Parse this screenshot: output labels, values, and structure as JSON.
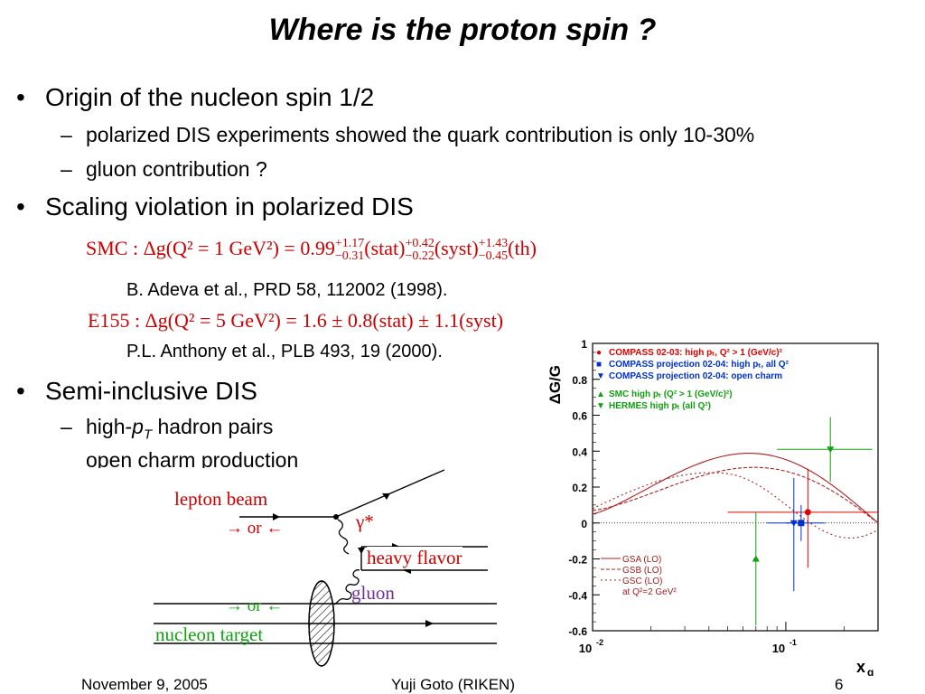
{
  "slide": {
    "title": "Where is the proton spin ?",
    "b1": "Origin of the nucleon spin 1/2",
    "b1_s1": "polarized DIS experiments showed the quark contribution is only 10-30%",
    "b1_s2": "gluon contribution ?",
    "b2": "Scaling violation in polarized DIS",
    "eq1": {
      "lhs": "SMC : Δg(Q² = 1 GeV²) = 0.99",
      "v1_up": "+1.17",
      "v1_dn": "−0.31",
      "t1": "(stat)",
      "v2_up": "+0.42",
      "v2_dn": "−0.22",
      "t2": "(syst)",
      "v3_up": "+1.43",
      "v3_dn": "−0.45",
      "t3": "(th)"
    },
    "ref1": "B. Adeva et al., PRD 58, 112002 (1998).",
    "eq2": "E155 : Δg(Q² = 5 GeV²) = 1.6 ± 0.8(stat) ± 1.1(syst)",
    "ref2": "P.L. Anthony et al., PLB 493, 19 (2000).",
    "b3": "Semi-inclusive DIS",
    "b3_s1_pre": "high-",
    "b3_s1_p": "p",
    "b3_s1_T": "T",
    "b3_s1_post": " hadron pairs",
    "b3_s2": "open charm production"
  },
  "diagram": {
    "lepton_beam": "lepton beam",
    "or_arrows_1": "→ or ←",
    "gamma": "γ*",
    "heavy_flavor": "heavy flavor",
    "gluon": "gluon",
    "or_arrows_2": "→ or ←",
    "nucleon_target": "nucleon target"
  },
  "chart_data": {
    "type": "scatter",
    "ylabel": "ΔG/G",
    "xlabel": "x",
    "xlabel_sub": "g",
    "x_log": true,
    "xlim": [
      0.01,
      0.3
    ],
    "ylim": [
      -0.6,
      1.0
    ],
    "yticks": [
      "1",
      "0.8",
      "0.6",
      "0.4",
      "0.2",
      "0",
      "-0.2",
      "-0.4",
      "-0.6"
    ],
    "xticks": [
      "10",
      "10"
    ],
    "xtick_exp": [
      "-2",
      "-1"
    ],
    "legend_top": [
      {
        "text": "COMPASS 02-03: high pₜ, Q² > 1 (GeV/c)²",
        "color": "#e00000"
      },
      {
        "text": "COMPASS projection 02-04: high pₜ, all Q²",
        "color": "#0030d0"
      },
      {
        "text": "COMPASS projection 02-04: open charm",
        "color": "#0030d0"
      },
      {
        "text": "SMC high pₜ (Q² > 1 (GeV/c)²)",
        "color": "#10a010"
      },
      {
        "text": "HERMES high pₜ (all Q²)",
        "color": "#10a010"
      }
    ],
    "legend_bottom": [
      "GSA (LO)",
      "GSB (LO)",
      "GSC (LO)",
      "at Q²=2 GeV²"
    ],
    "points": [
      {
        "name": "COMPASS 02-03",
        "x": 0.13,
        "y": 0.06,
        "color": "#e00000"
      },
      {
        "name": "COMPASS projection high pT",
        "x": 0.12,
        "y": 0.0,
        "color": "#0030d0"
      },
      {
        "name": "COMPASS projection open charm",
        "x": 0.11,
        "y": 0.0,
        "color": "#0030d0"
      },
      {
        "name": "SMC",
        "x": 0.07,
        "y": -0.2,
        "color": "#10a010"
      },
      {
        "name": "HERMES",
        "x": 0.17,
        "y": 0.41,
        "color": "#10a010"
      }
    ],
    "curves": [
      "GSA (LO)",
      "GSB (LO)",
      "GSC (LO)"
    ]
  },
  "footer": {
    "date": "November 9, 2005",
    "author": "Yuji Goto (RIKEN)",
    "page": "6"
  }
}
